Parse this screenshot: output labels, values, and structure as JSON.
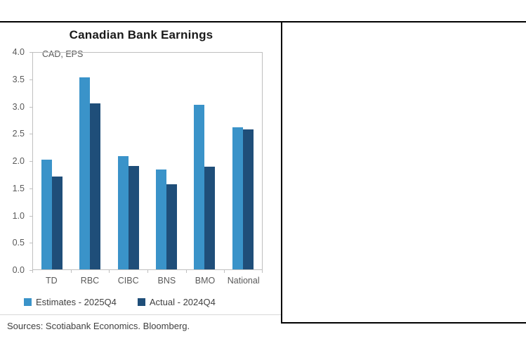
{
  "chart_data": {
    "type": "bar",
    "title": "Canadian Bank Earnings",
    "units_label": "CAD, EPS",
    "categories": [
      "TD",
      "RBC",
      "CIBC",
      "BNS",
      "BMO",
      "National"
    ],
    "series": [
      {
        "name": "Estimates - 2025Q4",
        "color": "#3a93c9",
        "values": [
          2.03,
          3.54,
          2.09,
          1.85,
          3.04,
          2.63
        ]
      },
      {
        "name": "Actual - 2024Q4",
        "color": "#1f4e79",
        "values": [
          1.72,
          3.07,
          1.91,
          1.57,
          1.9,
          2.58
        ]
      }
    ],
    "ylim": [
      0,
      4
    ],
    "ytick_step": 0.5,
    "grid": false,
    "legend_position": "bottom"
  },
  "notes": {
    "source": "Sources: Scotiabank Economics. Bloomberg."
  },
  "style": {
    "axis_color": "#bfbfbf",
    "text_color": "#595959",
    "rule_color": "#000000"
  }
}
